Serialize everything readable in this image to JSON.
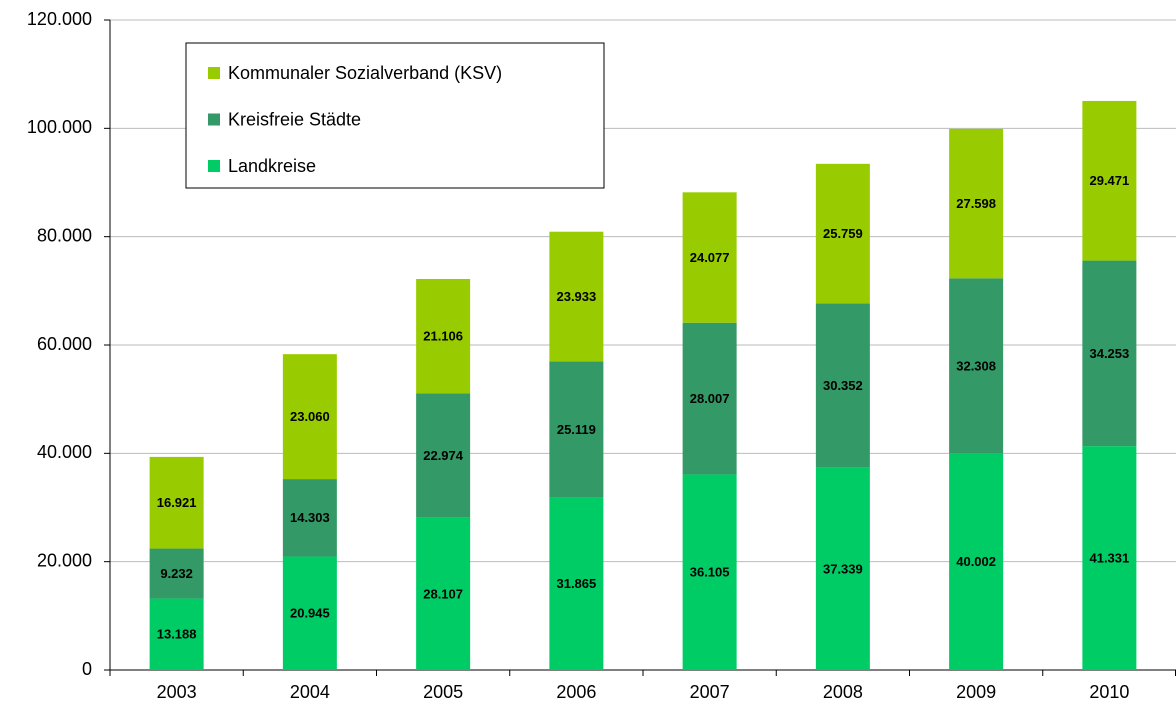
{
  "chart_data": {
    "type": "stacked_bar",
    "categories": [
      "2003",
      "2004",
      "2005",
      "2006",
      "2007",
      "2008",
      "2009",
      "2010"
    ],
    "series": [
      {
        "name": "Landkreise",
        "color": "#00cc66",
        "values": [
          13188,
          20945,
          28107,
          31865,
          36105,
          37339,
          40002,
          41331
        ],
        "value_labels": [
          "13.188",
          "20.945",
          "28.107",
          "31.865",
          "36.105",
          "37.339",
          "40.002",
          "41.331"
        ]
      },
      {
        "name": "Kreisfreie Städte",
        "color": "#339966",
        "values": [
          9232,
          14303,
          22974,
          25119,
          28007,
          30352,
          32308,
          34253
        ],
        "value_labels": [
          "9.232",
          "14.303",
          "22.974",
          "25.119",
          "28.007",
          "30.352",
          "32.308",
          "34.253"
        ]
      },
      {
        "name": "Kommunaler Sozialverband (KSV)",
        "color": "#99cc00",
        "values": [
          16921,
          23060,
          21106,
          23933,
          24077,
          25759,
          27598,
          29471
        ],
        "value_labels": [
          "16.921",
          "23.060",
          "21.106",
          "23.933",
          "24.077",
          "25.759",
          "27.598",
          "29.471"
        ]
      }
    ],
    "ylim": [
      0,
      120000
    ],
    "yticks": [
      0,
      {
        "value": 20000,
        "label": "20.000"
      },
      {
        "value": 40000,
        "label": "40.000"
      },
      {
        "value": 60000,
        "label": "60.000"
      },
      {
        "value": 80000,
        "label": "80.000"
      },
      {
        "value": 100000,
        "label": "100.000"
      },
      {
        "value": 120000,
        "label": "120.000"
      }
    ],
    "grid": true,
    "legend": "upper left"
  }
}
